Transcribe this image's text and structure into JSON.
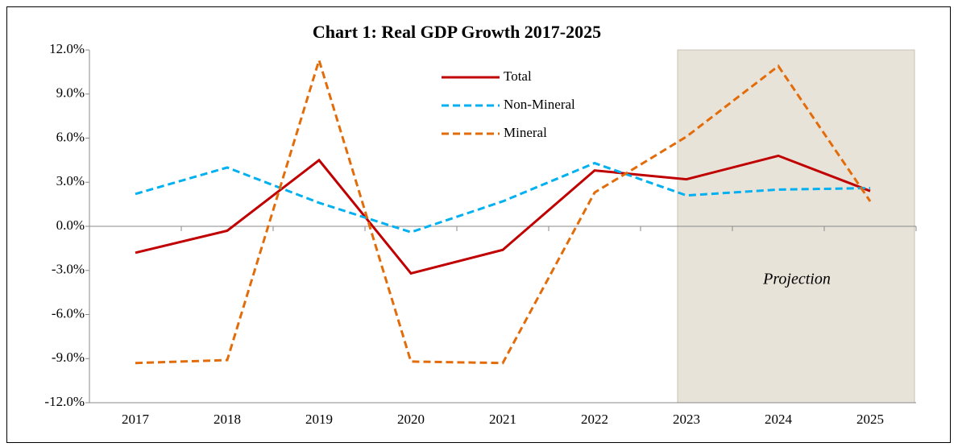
{
  "chart_data": {
    "type": "line",
    "title": "Chart 1: Real GDP Growth 2017-2025",
    "categories": [
      "2017",
      "2018",
      "2019",
      "2020",
      "2021",
      "2022",
      "2023",
      "2024",
      "2025"
    ],
    "series": [
      {
        "name": "Total",
        "color": "#c00000",
        "dash": false,
        "values": [
          -1.8,
          -0.3,
          4.5,
          -3.2,
          -1.6,
          3.8,
          3.2,
          4.8,
          2.4
        ]
      },
      {
        "name": "Non-Mineral",
        "color": "#00b0f0",
        "dash": true,
        "values": [
          2.2,
          4.0,
          1.6,
          -0.4,
          1.7,
          4.3,
          2.1,
          2.5,
          2.6
        ]
      },
      {
        "name": "Mineral",
        "color": "#e36c0a",
        "dash": true,
        "values": [
          -9.3,
          -9.1,
          11.3,
          -9.2,
          -9.3,
          2.3,
          6.1,
          10.9,
          1.7
        ]
      }
    ],
    "ylim": [
      -12,
      12
    ],
    "yticks": [
      {
        "value": -12,
        "label": "-12.0%"
      },
      {
        "value": -9,
        "label": "-9.0%"
      },
      {
        "value": -6,
        "label": "-6.0%"
      },
      {
        "value": -3,
        "label": "-3.0%"
      },
      {
        "value": 0,
        "label": "0.0%"
      },
      {
        "value": 3,
        "label": "3.0%"
      },
      {
        "value": 6,
        "label": "6.0%"
      },
      {
        "value": 9,
        "label": "9.0%"
      },
      {
        "value": 12,
        "label": "12.0%"
      }
    ],
    "annotation": "Projection",
    "projection_start": "2023",
    "grid": false
  }
}
